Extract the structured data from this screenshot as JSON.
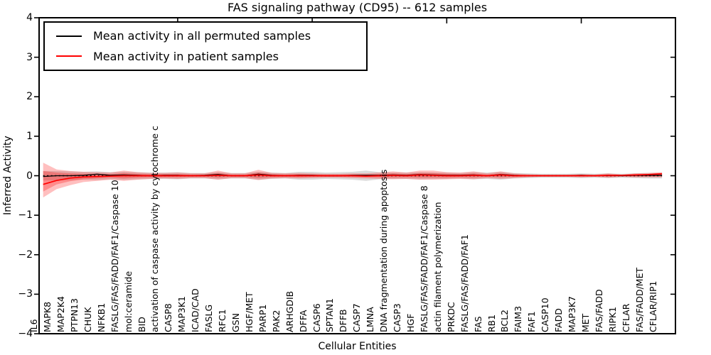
{
  "chart_data": {
    "type": "line",
    "title": "FAS signaling pathway (CD95) -- 612 samples",
    "xlabel": "Cellular Entities",
    "ylabel": "Inferred Activity",
    "ylim": [
      -4,
      4
    ],
    "yticks": [
      "4",
      "3",
      "2",
      "1",
      "0",
      "−1",
      "−2",
      "−3",
      "−4"
    ],
    "xtick_indices": [
      10,
      20,
      30,
      40
    ],
    "grid": false,
    "legend_position": "upper left",
    "categories": [
      "IL6",
      "MAPK8",
      "MAP2K4",
      "PTPN13",
      "CHUK",
      "NFKB1",
      "FASLG/FAS/FADD/FAF1/Caspase 10",
      "mol:ceramide",
      "BID",
      "activation of caspase activity by cytochrome c",
      "CASP8",
      "MAP3K1",
      "ICAD/CAD",
      "FASLG",
      "RFC1",
      "GSN",
      "HGF/MET",
      "PARP1",
      "PAK2",
      "ARHGDIB",
      "DFFA",
      "CASP6",
      "SPTAN1",
      "DFFB",
      "CASP7",
      "LMNA",
      "DNA fragmentation during apoptosis",
      "CASP3",
      "HGF",
      "FASLG/FAS/FADD/FAF1/Caspase 8",
      "actin filament polymerization",
      "PRKDC",
      "FASLG/FAS/FADD/FAF1",
      "FAS",
      "RB1",
      "BCL2",
      "FAIM3",
      "FAF1",
      "CASP10",
      "FADD",
      "MAP3K7",
      "MET",
      "FAS/FADD",
      "RIPK1",
      "CFLAR",
      "FAS/FADD/MET",
      "CFLAR/RIP1"
    ],
    "series": [
      {
        "name": "Mean activity in all permuted samples",
        "color": "#000000",
        "values": [
          -0.02,
          0.0,
          0.0,
          0.01,
          0.04,
          0.01,
          0.02,
          0.01,
          0.0,
          0.01,
          0.01,
          0.0,
          0.01,
          0.03,
          0.0,
          0.0,
          0.04,
          0.01,
          0.0,
          0.01,
          0.01,
          0.0,
          0.0,
          0.01,
          0.01,
          0.01,
          0.02,
          0.01,
          0.03,
          0.02,
          0.01,
          0.01,
          0.02,
          0.0,
          0.03,
          0.01,
          0.0,
          0.0,
          0.0,
          0.0,
          0.01,
          0.0,
          0.01,
          0.0,
          0.01,
          0.01,
          0.01
        ]
      },
      {
        "name": "Mean activity in patient samples",
        "color": "#ff0000",
        "values": [
          -0.22,
          -0.12,
          -0.06,
          -0.03,
          -0.02,
          -0.01,
          0.0,
          0.0,
          0.0,
          0.0,
          0.0,
          0.0,
          0.0,
          0.01,
          0.0,
          0.0,
          0.02,
          0.0,
          0.0,
          0.0,
          0.0,
          0.0,
          0.0,
          0.0,
          -0.01,
          0.0,
          0.01,
          0.0,
          0.02,
          0.01,
          0.0,
          0.0,
          0.01,
          0.0,
          0.02,
          0.0,
          0.0,
          0.0,
          0.0,
          0.0,
          0.0,
          0.0,
          0.01,
          0.01,
          0.02,
          0.03,
          0.05
        ]
      }
    ],
    "bands": [
      {
        "name": "permuted-spread",
        "color": "#888888",
        "opacity": 0.3,
        "upper": [
          0.12,
          0.12,
          0.11,
          0.1,
          0.11,
          0.09,
          0.1,
          0.09,
          0.08,
          0.08,
          0.09,
          0.07,
          0.07,
          0.09,
          0.07,
          0.07,
          0.1,
          0.08,
          0.07,
          0.1,
          0.1,
          0.08,
          0.09,
          0.1,
          0.13,
          0.09,
          0.08,
          0.08,
          0.09,
          0.08,
          0.08,
          0.07,
          0.09,
          0.08,
          0.1,
          0.07,
          0.06,
          0.05,
          0.05,
          0.05,
          0.06,
          0.05,
          0.06,
          0.05,
          0.06,
          0.07,
          0.07
        ],
        "lower": [
          -0.12,
          -0.12,
          -0.11,
          -0.1,
          -0.11,
          -0.09,
          -0.1,
          -0.09,
          -0.08,
          -0.08,
          -0.09,
          -0.07,
          -0.07,
          -0.09,
          -0.07,
          -0.07,
          -0.1,
          -0.08,
          -0.07,
          -0.1,
          -0.1,
          -0.08,
          -0.09,
          -0.1,
          -0.13,
          -0.09,
          -0.08,
          -0.08,
          -0.09,
          -0.08,
          -0.08,
          -0.07,
          -0.09,
          -0.08,
          -0.1,
          -0.07,
          -0.06,
          -0.05,
          -0.05,
          -0.05,
          -0.06,
          -0.05,
          -0.06,
          -0.05,
          -0.06,
          -0.07,
          -0.07
        ]
      },
      {
        "name": "patient-spread-outer",
        "color": "#ff0000",
        "opacity": 0.25,
        "upper": [
          0.33,
          0.16,
          0.12,
          0.1,
          0.09,
          0.08,
          0.13,
          0.09,
          0.07,
          0.07,
          0.08,
          0.06,
          0.06,
          0.13,
          0.06,
          0.06,
          0.15,
          0.07,
          0.06,
          0.07,
          0.06,
          0.05,
          0.05,
          0.06,
          0.06,
          0.08,
          0.11,
          0.08,
          0.13,
          0.13,
          0.09,
          0.08,
          0.11,
          0.06,
          0.11,
          0.06,
          0.04,
          0.03,
          0.03,
          0.03,
          0.04,
          0.03,
          0.06,
          0.03,
          0.06,
          0.07,
          0.09
        ],
        "lower": [
          -0.55,
          -0.34,
          -0.24,
          -0.16,
          -0.13,
          -0.1,
          -0.13,
          -0.1,
          -0.08,
          -0.07,
          -0.08,
          -0.06,
          -0.06,
          -0.1,
          -0.06,
          -0.06,
          -0.11,
          -0.07,
          -0.06,
          -0.07,
          -0.06,
          -0.05,
          -0.05,
          -0.06,
          -0.07,
          -0.08,
          -0.09,
          -0.08,
          -0.1,
          -0.1,
          -0.09,
          -0.08,
          -0.09,
          -0.06,
          -0.08,
          -0.06,
          -0.04,
          -0.03,
          -0.03,
          -0.03,
          -0.04,
          -0.03,
          -0.05,
          -0.03,
          -0.04,
          -0.04,
          -0.04
        ]
      },
      {
        "name": "patient-spread-inner",
        "color": "#ff0000",
        "opacity": 0.27,
        "upper": [
          0.12,
          0.08,
          0.06,
          0.05,
          0.05,
          0.04,
          0.07,
          0.05,
          0.04,
          0.04,
          0.04,
          0.03,
          0.03,
          0.07,
          0.03,
          0.03,
          0.08,
          0.04,
          0.03,
          0.04,
          0.03,
          0.03,
          0.03,
          0.03,
          0.03,
          0.04,
          0.06,
          0.04,
          0.07,
          0.07,
          0.05,
          0.04,
          0.06,
          0.03,
          0.06,
          0.03,
          0.02,
          0.02,
          0.02,
          0.02,
          0.02,
          0.02,
          0.03,
          0.02,
          0.03,
          0.04,
          0.05
        ],
        "lower": [
          -0.4,
          -0.22,
          -0.14,
          -0.09,
          -0.07,
          -0.05,
          -0.07,
          -0.05,
          -0.04,
          -0.04,
          -0.04,
          -0.03,
          -0.03,
          -0.05,
          -0.03,
          -0.03,
          -0.06,
          -0.04,
          -0.03,
          -0.04,
          -0.03,
          -0.03,
          -0.03,
          -0.03,
          -0.04,
          -0.04,
          -0.05,
          -0.04,
          -0.05,
          -0.05,
          -0.05,
          -0.04,
          -0.05,
          -0.03,
          -0.04,
          -0.03,
          -0.02,
          -0.02,
          -0.02,
          -0.02,
          -0.02,
          -0.02,
          -0.03,
          -0.02,
          -0.02,
          -0.02,
          -0.02
        ]
      }
    ],
    "zero_line": {
      "style": "dotted",
      "color": "#000000",
      "y": 0
    }
  }
}
